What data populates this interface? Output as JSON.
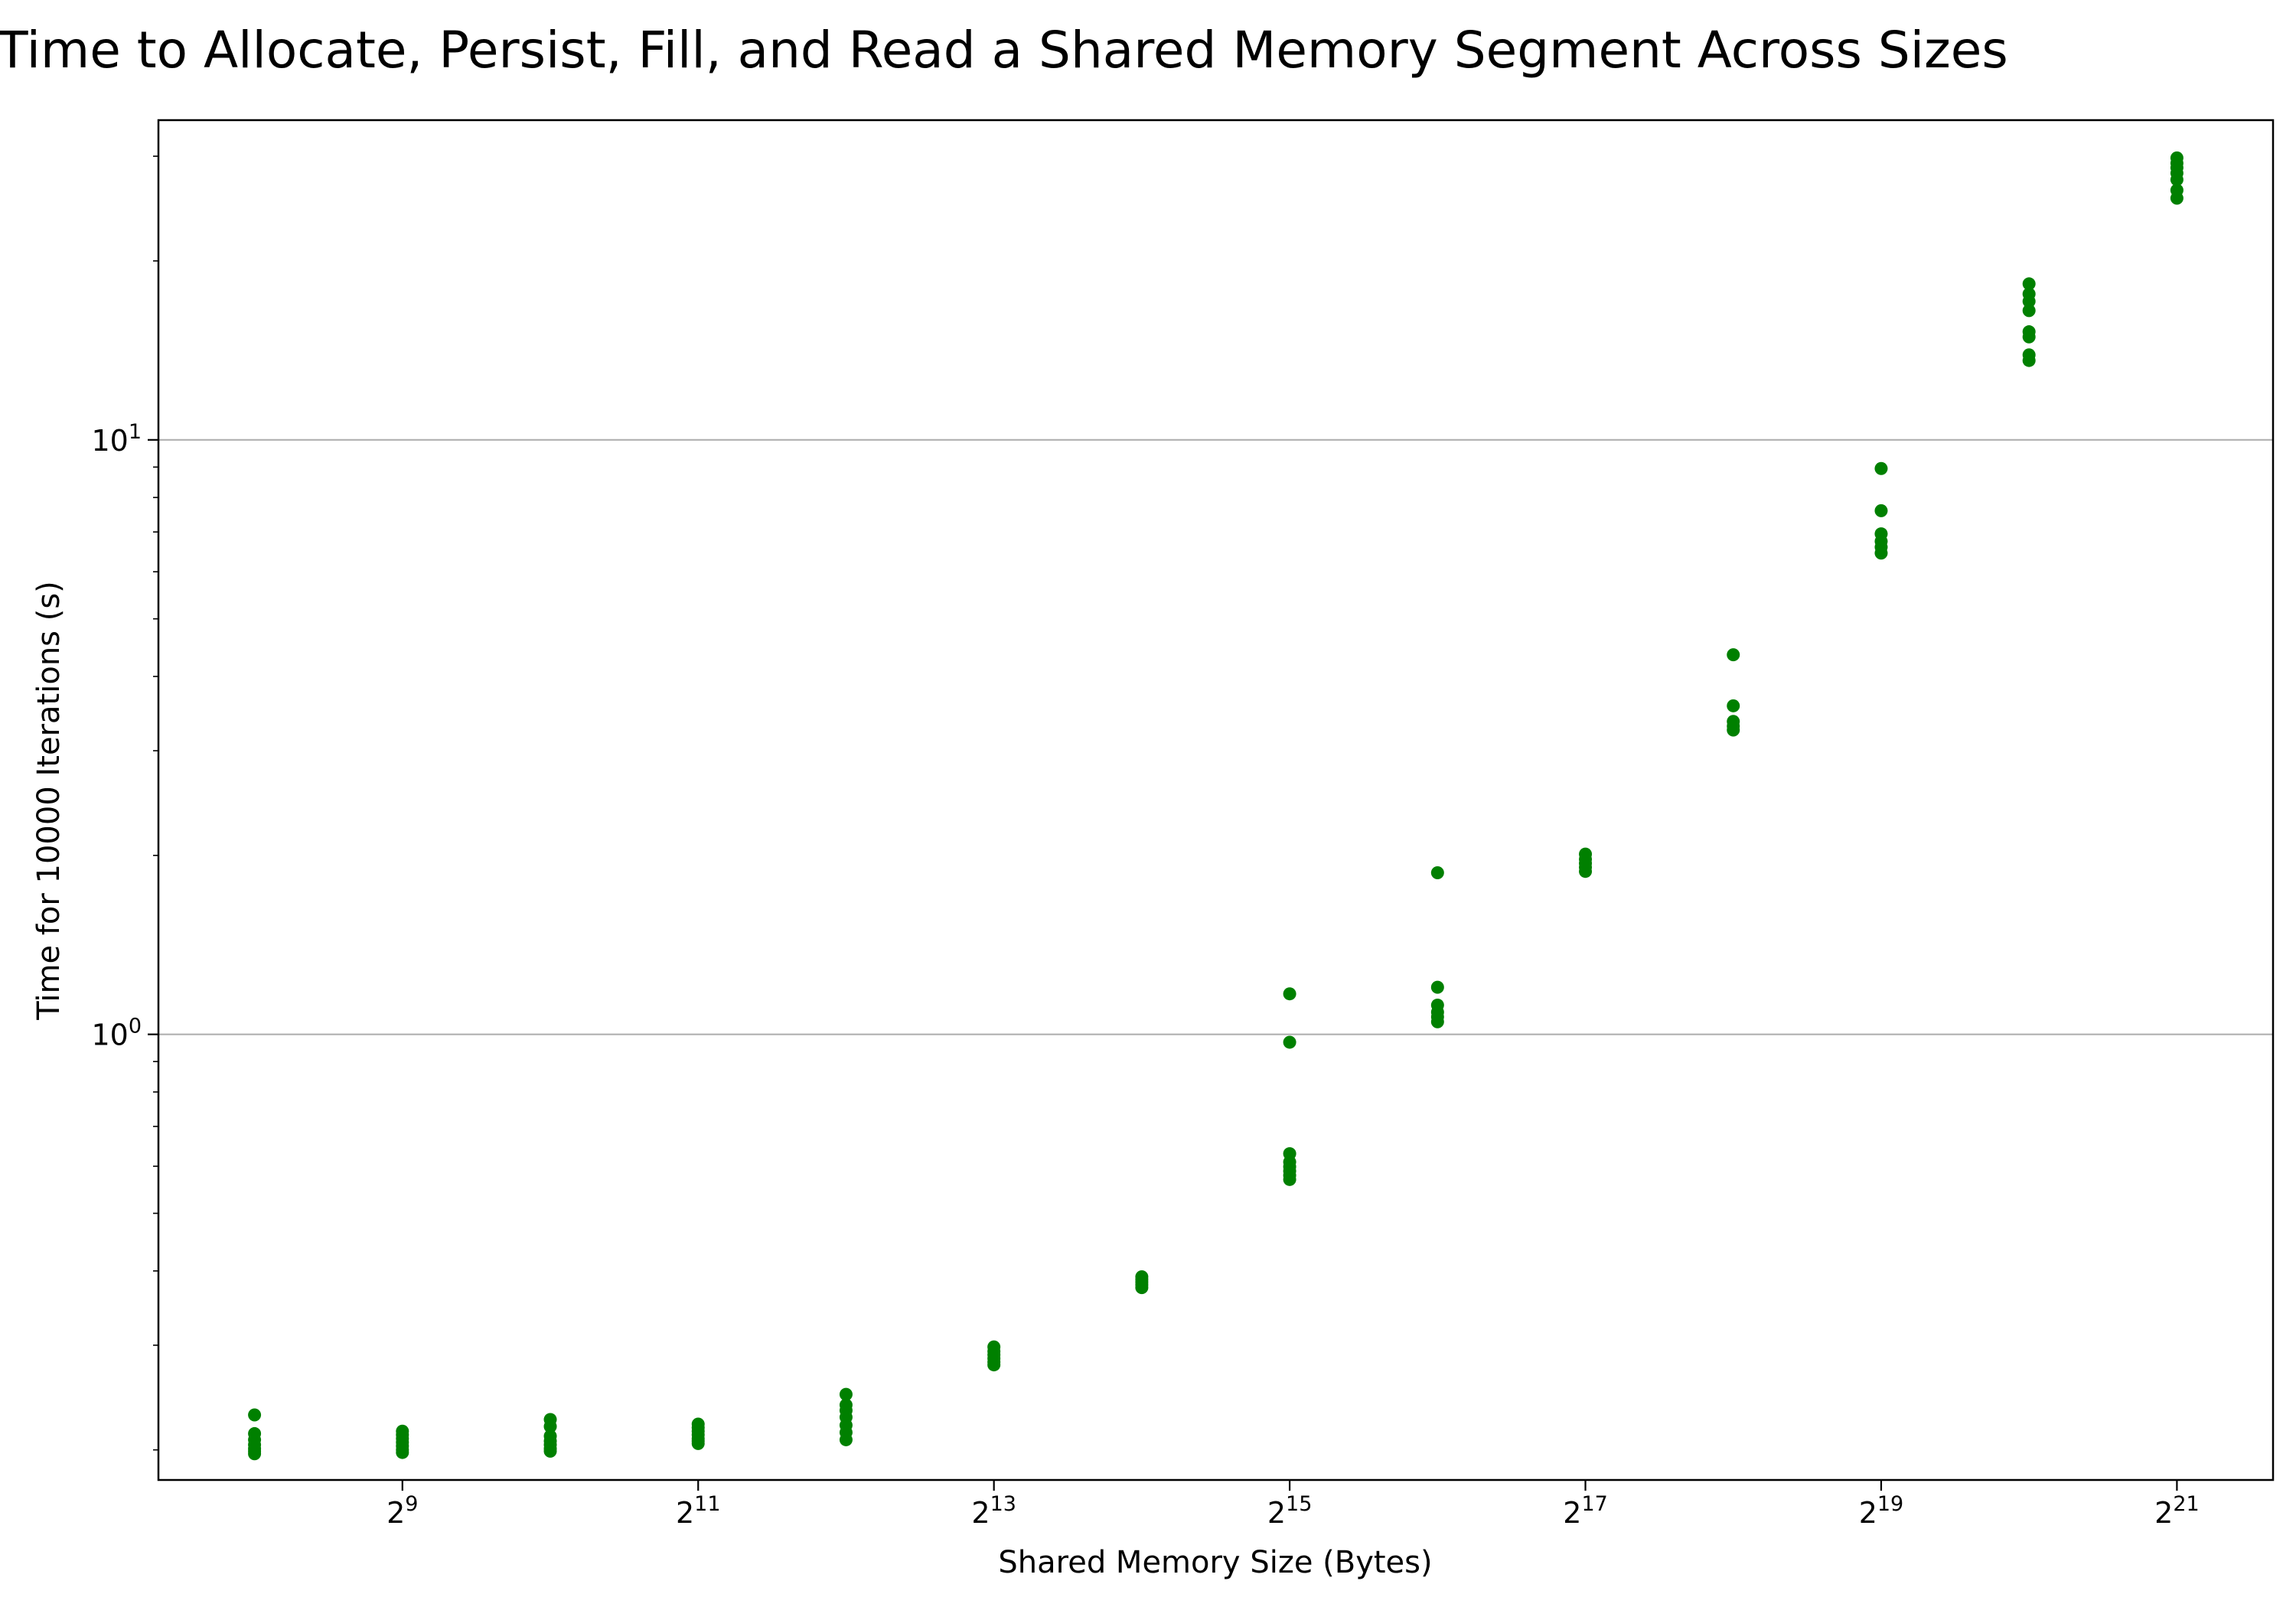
{
  "chart_data": {
    "type": "scatter",
    "title": "Time to Allocate, Persist, Fill, and Read a Shared Memory Segment Across Sizes",
    "xlabel": "Shared Memory Size (Bytes)",
    "ylabel": "Time for 10000 Iterations (s)",
    "x_scale": "log2",
    "y_scale": "log10",
    "xlim_exp": [
      7.35,
      21.65
    ],
    "ylim": [
      0.178,
      34.5
    ],
    "grid": "y-major",
    "color": "#008000",
    "x_ticks": [
      {
        "base": "2",
        "exp": "9",
        "value": 512
      },
      {
        "base": "2",
        "exp": "11",
        "value": 2048
      },
      {
        "base": "2",
        "exp": "13",
        "value": 8192
      },
      {
        "base": "2",
        "exp": "15",
        "value": 32768
      },
      {
        "base": "2",
        "exp": "17",
        "value": 131072
      },
      {
        "base": "2",
        "exp": "19",
        "value": 524288
      },
      {
        "base": "2",
        "exp": "21",
        "value": 2097152
      }
    ],
    "y_ticks": [
      {
        "base": "10",
        "exp": "0",
        "value": 1
      },
      {
        "base": "10",
        "exp": "1",
        "value": 10
      }
    ],
    "series": [
      {
        "x": 256,
        "y": [
          0.197,
          0.199,
          0.201,
          0.204,
          0.208,
          0.213,
          0.229
        ]
      },
      {
        "x": 512,
        "y": [
          0.198,
          0.2,
          0.203,
          0.206,
          0.209,
          0.212,
          0.215
        ]
      },
      {
        "x": 1024,
        "y": [
          0.199,
          0.201,
          0.204,
          0.207,
          0.211,
          0.219,
          0.225
        ]
      },
      {
        "x": 2048,
        "y": [
          0.205,
          0.207,
          0.209,
          0.212,
          0.215,
          0.218,
          0.221
        ]
      },
      {
        "x": 4096,
        "y": [
          0.208,
          0.214,
          0.22,
          0.227,
          0.233,
          0.238,
          0.248
        ]
      },
      {
        "x": 8192,
        "y": [
          0.278,
          0.281,
          0.285,
          0.289,
          0.293,
          0.298
        ]
      },
      {
        "x": 16384,
        "y": [
          0.375,
          0.379,
          0.383,
          0.387,
          0.391
        ]
      },
      {
        "x": 32768,
        "y": [
          0.57,
          0.579,
          0.589,
          0.599,
          0.61,
          0.63,
          0.97,
          1.17
        ]
      },
      {
        "x": 65536,
        "y": [
          1.05,
          1.07,
          1.09,
          1.12,
          1.2,
          1.87
        ]
      },
      {
        "x": 131072,
        "y": [
          1.88,
          1.91,
          1.94,
          1.97,
          2.01
        ]
      },
      {
        "x": 262144,
        "y": [
          3.25,
          3.3,
          3.36,
          3.57,
          4.35
        ]
      },
      {
        "x": 524288,
        "y": [
          6.45,
          6.6,
          6.75,
          6.95,
          7.6,
          8.95
        ]
      },
      {
        "x": 1048576,
        "y": [
          13.6,
          13.9,
          14.9,
          15.2,
          16.5,
          17.1,
          17.6,
          18.3
        ]
      },
      {
        "x": 2097152,
        "y": [
          25.5,
          26.3,
          27.4,
          28.1,
          28.7,
          29.2,
          29.8
        ]
      }
    ]
  }
}
